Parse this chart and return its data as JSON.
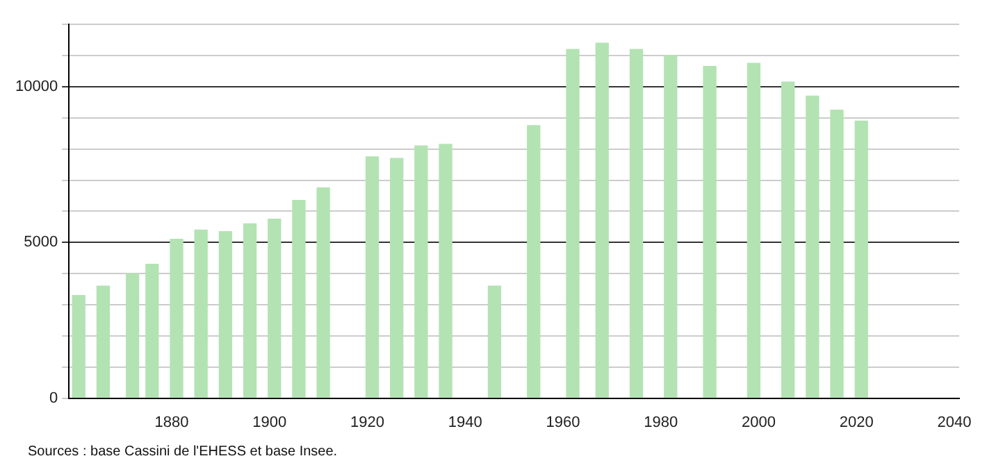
{
  "chart_data": {
    "type": "bar",
    "x": [
      1861,
      1866,
      1872,
      1876,
      1881,
      1886,
      1891,
      1896,
      1901,
      1906,
      1911,
      1921,
      1926,
      1931,
      1936,
      1946,
      1954,
      1962,
      1968,
      1975,
      1982,
      1990,
      1999,
      2006,
      2011,
      2016,
      2021
    ],
    "values": [
      3300,
      3600,
      4000,
      4300,
      5100,
      5400,
      5350,
      5600,
      5750,
      6350,
      6750,
      7750,
      7700,
      8100,
      8150,
      3600,
      8750,
      11200,
      11400,
      11200,
      11000,
      10650,
      10750,
      10150,
      9700,
      9250,
      8900
    ],
    "color": "#b3e3b3",
    "xlim": [
      1859,
      2041
    ],
    "xticks": [
      1880,
      1900,
      1920,
      1940,
      1960,
      1980,
      2000,
      2020,
      2040
    ],
    "ylim": [
      0,
      12000
    ],
    "yticks": [
      0,
      {
        "value": 1000,
        "label": null
      },
      {
        "value": 2000,
        "label": null
      },
      {
        "value": 3000,
        "label": null
      },
      {
        "value": 4000,
        "label": null
      },
      5000,
      {
        "value": 6000,
        "label": null
      },
      {
        "value": 7000,
        "label": null
      },
      {
        "value": 8000,
        "label": null
      },
      {
        "value": 9000,
        "label": null
      },
      10000,
      {
        "value": 11000,
        "label": null
      },
      {
        "value": 12000,
        "label": null
      }
    ],
    "grid": "y",
    "annotations": [
      "Sources : base Cassini de l'EHESS et base Insee."
    ]
  }
}
